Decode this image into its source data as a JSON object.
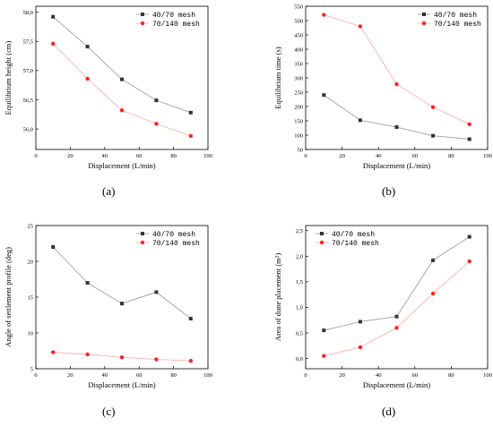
{
  "colors": {
    "s1": "#333333",
    "s2": "#ff2020",
    "axis": "#000000",
    "line1": "#a0a0a0",
    "line2": "#ffb0b0"
  },
  "chart_data": [
    {
      "type": "line",
      "panel_label": "(a)",
      "xlabel": "Displacement (L/min)",
      "ylabel": "Equilibrium height (cm)",
      "xlim": [
        0,
        100
      ],
      "ylim": [
        55.65,
        58.1
      ],
      "xticks": [
        "0",
        "20",
        "40",
        "60",
        "80",
        "100"
      ],
      "yticks": [
        "56,0",
        "56,5",
        "57,0",
        "57,5",
        "58,0"
      ],
      "x": [
        10,
        30,
        50,
        70,
        90
      ],
      "series": [
        {
          "name": "40/70 mesh",
          "values": [
            57.92,
            57.41,
            56.85,
            56.49,
            56.28
          ]
        },
        {
          "name": "70/140 mesh",
          "values": [
            57.46,
            56.86,
            56.32,
            56.09,
            55.88
          ]
        }
      ],
      "legend": "top-right",
      "grid": false
    },
    {
      "type": "line",
      "panel_label": "(b)",
      "xlabel": "Displacement (L/min)",
      "ylabel": "Equilibrium time (s)",
      "xlim": [
        0,
        100
      ],
      "ylim": [
        50,
        550
      ],
      "xticks": [
        "0",
        "20",
        "40",
        "60",
        "80",
        "100"
      ],
      "yticks": [
        "50",
        "100",
        "150",
        "200",
        "250",
        "300",
        "350",
        "400",
        "450",
        "500",
        "550"
      ],
      "x": [
        10,
        30,
        50,
        70,
        90
      ],
      "series": [
        {
          "name": "40/70 mesh",
          "values": [
            240,
            152,
            128,
            98,
            86
          ]
        },
        {
          "name": "70/140 mesh",
          "values": [
            520,
            480,
            278,
            198,
            138
          ]
        }
      ],
      "legend": "top-right",
      "grid": false
    },
    {
      "type": "line",
      "panel_label": "(c)",
      "xlabel": "Displacement (L/min)",
      "ylabel": "Angle of settlement profile (deg)",
      "xlim": [
        0,
        100
      ],
      "ylim": [
        5,
        25
      ],
      "xticks": [
        "0",
        "20",
        "40",
        "60",
        "80",
        "100"
      ],
      "yticks": [
        "5",
        "10",
        "15",
        "20",
        "25"
      ],
      "x": [
        10,
        30,
        50,
        70,
        90
      ],
      "series": [
        {
          "name": "40/70 mesh",
          "values": [
            22.0,
            17.0,
            14.1,
            15.7,
            12.0
          ]
        },
        {
          "name": "70/140 mesh",
          "values": [
            7.3,
            7.0,
            6.6,
            6.3,
            6.1
          ]
        }
      ],
      "legend": "top-right",
      "grid": false
    },
    {
      "type": "line",
      "panel_label": "(d)",
      "xlabel": "Displacement (L/min)",
      "ylabel": "Area of dune placement (m²)",
      "xlim": [
        0,
        100
      ],
      "ylim": [
        -0.2,
        2.6
      ],
      "xticks": [
        "0",
        "20",
        "40",
        "60",
        "80",
        "100"
      ],
      "yticks": [
        "0,0",
        "0,5",
        "1,0",
        "1,5",
        "2,0",
        "2,5"
      ],
      "x": [
        10,
        30,
        50,
        70,
        90
      ],
      "series": [
        {
          "name": "40/70 mesh",
          "values": [
            0.55,
            0.72,
            0.82,
            1.92,
            2.38
          ]
        },
        {
          "name": "70/140 mesh",
          "values": [
            0.05,
            0.22,
            0.6,
            1.27,
            1.9
          ]
        }
      ],
      "legend": "top-left",
      "grid": false
    }
  ]
}
